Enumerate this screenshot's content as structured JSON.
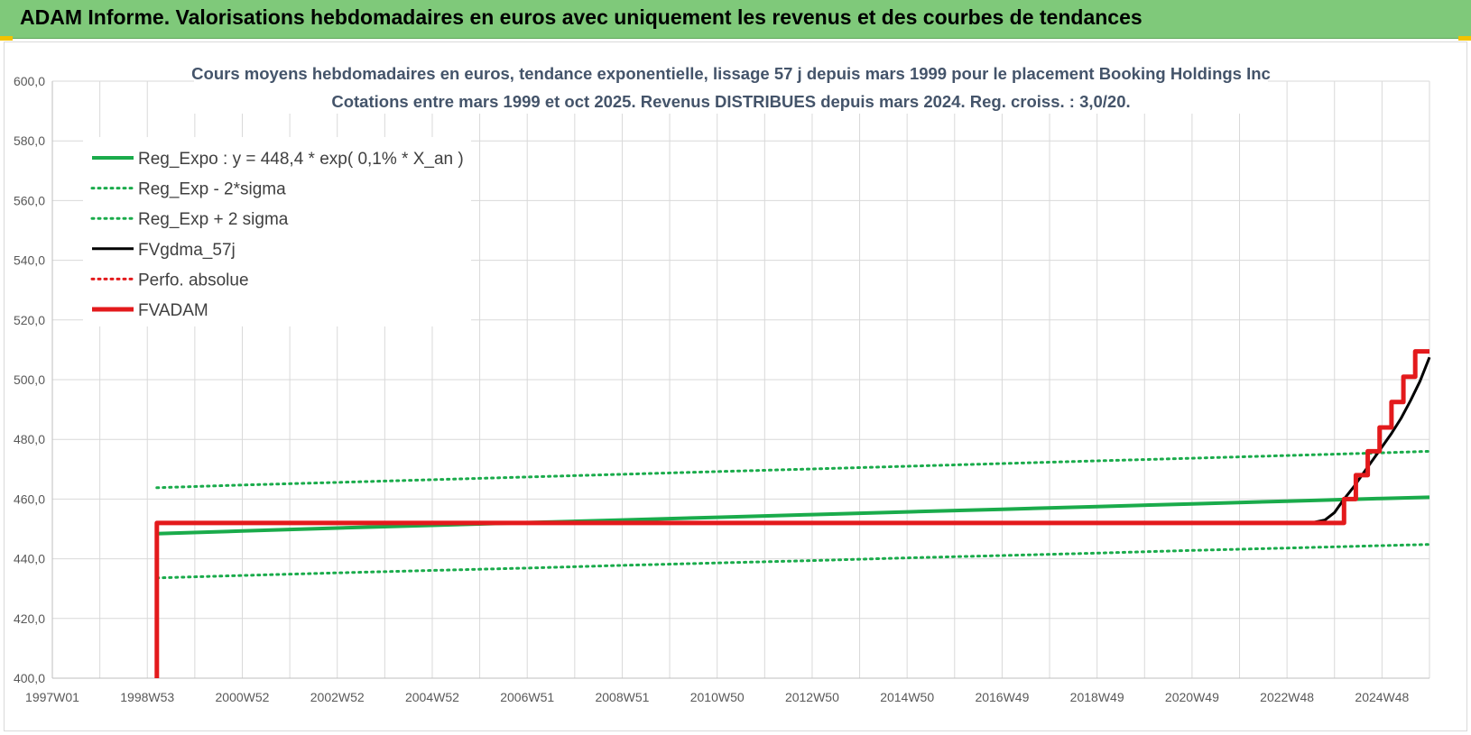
{
  "header": {
    "title": "ADAM Informe. Valorisations hebdomadaires en euros avec uniquement les revenus et des courbes de tendances"
  },
  "colors": {
    "banner": "#7fc97a",
    "green": "#1aab4b",
    "red": "#e31a1c",
    "black": "#000000",
    "grid": "#d9d9d9",
    "title": "#44546a"
  },
  "chart_data": {
    "type": "line",
    "title": "Cours moyens hebdomadaires en euros, tendance exponentielle, lissage 57 j depuis mars 1999 pour le placement Booking Holdings Inc",
    "subtitle": "Cotations entre mars 1999 et oct 2025.  Revenus DISTRIBUES depuis mars 2024. Reg. croiss. : 3,0/20.",
    "xlabel": "",
    "ylabel": "",
    "ylim": [
      400,
      600
    ],
    "xlim": [
      1997.0,
      2026.0
    ],
    "y_ticks": [
      "400,0",
      "420,0",
      "440,0",
      "460,0",
      "480,0",
      "500,0",
      "520,0",
      "540,0",
      "560,0",
      "580,0",
      "600,0"
    ],
    "x_ticks": [
      {
        "label": "1997W01",
        "x": 1997.0
      },
      {
        "label": "1998W53",
        "x": 1999.0
      },
      {
        "label": "2000W52",
        "x": 2001.0
      },
      {
        "label": "2002W52",
        "x": 2003.0
      },
      {
        "label": "2004W52",
        "x": 2005.0
      },
      {
        "label": "2006W51",
        "x": 2007.0
      },
      {
        "label": "2008W51",
        "x": 2009.0
      },
      {
        "label": "2010W50",
        "x": 2011.0
      },
      {
        "label": "2012W50",
        "x": 2013.0
      },
      {
        "label": "2014W50",
        "x": 2015.0
      },
      {
        "label": "2016W49",
        "x": 2017.0
      },
      {
        "label": "2018W49",
        "x": 2019.0
      },
      {
        "label": "2020W49",
        "x": 2021.0
      },
      {
        "label": "2022W48",
        "x": 2023.0
      },
      {
        "label": "2024W48",
        "x": 2025.0
      }
    ],
    "grid": true,
    "legend_position": "top-left",
    "series": [
      {
        "name": "Reg_Expo : y = 448,4 * exp( 0,1% *  X_an )",
        "style": "solid",
        "color": "#1aab4b",
        "width": 4,
        "x": [
          1999.2,
          2001,
          2003,
          2005,
          2007,
          2009,
          2011,
          2013,
          2015,
          2017,
          2019,
          2021,
          2023,
          2025,
          2026
        ],
        "y": [
          448.4,
          449.3,
          450.3,
          451.2,
          452.1,
          453.0,
          453.9,
          454.8,
          455.7,
          456.6,
          457.5,
          458.4,
          459.3,
          460.2,
          460.6
        ]
      },
      {
        "name": "Reg_Exp - 2*sigma",
        "style": "dotted",
        "color": "#1aab4b",
        "width": 3,
        "x": [
          1999.2,
          2001,
          2003,
          2005,
          2007,
          2009,
          2011,
          2013,
          2015,
          2017,
          2019,
          2021,
          2023,
          2025,
          2026
        ],
        "y": [
          433.6,
          434.4,
          435.3,
          436.1,
          436.9,
          437.8,
          438.6,
          439.4,
          440.3,
          441.1,
          441.9,
          442.8,
          443.6,
          444.4,
          444.8
        ]
      },
      {
        "name": "Reg_Exp + 2 sigma",
        "style": "dotted",
        "color": "#1aab4b",
        "width": 3,
        "x": [
          1999.2,
          2001,
          2003,
          2005,
          2007,
          2009,
          2011,
          2013,
          2015,
          2017,
          2019,
          2021,
          2023,
          2025,
          2026
        ],
        "y": [
          463.8,
          464.7,
          465.6,
          466.5,
          467.4,
          468.3,
          469.2,
          470.1,
          471.0,
          471.9,
          472.8,
          473.7,
          474.6,
          475.5,
          476.0
        ]
      },
      {
        "name": "FVgdma_57j",
        "style": "solid",
        "color": "#000000",
        "width": 3,
        "x": [
          1999.2,
          2023.5,
          2023.8,
          2024.0,
          2024.2,
          2024.4,
          2024.6,
          2024.8,
          2025.0,
          2025.2,
          2025.4,
          2025.6,
          2025.8,
          2026.0
        ],
        "y": [
          452.0,
          452.0,
          453.0,
          455.5,
          460.0,
          464.0,
          468.5,
          473.0,
          477.5,
          482.0,
          487.0,
          493.0,
          499.5,
          507.5
        ]
      },
      {
        "name": "Perfo. absolue",
        "style": "dotted",
        "color": "#e31a1c",
        "width": 3,
        "x": [],
        "y": []
      },
      {
        "name": "FVADAM",
        "style": "solid",
        "color": "#e31a1c",
        "width": 5,
        "x": [
          1999.2,
          1999.2,
          2024.2,
          2024.2,
          2024.45,
          2024.45,
          2024.7,
          2024.7,
          2024.95,
          2024.95,
          2025.2,
          2025.2,
          2025.45,
          2025.45,
          2025.7,
          2025.7,
          2025.95,
          2025.95,
          2026.0
        ],
        "y": [
          400.0,
          452.0,
          452.0,
          460.0,
          460.0,
          468.0,
          468.0,
          476.0,
          476.0,
          484.0,
          484.0,
          492.5,
          492.5,
          501.0,
          501.0,
          509.5,
          509.5,
          509.5,
          509.5
        ]
      }
    ]
  }
}
